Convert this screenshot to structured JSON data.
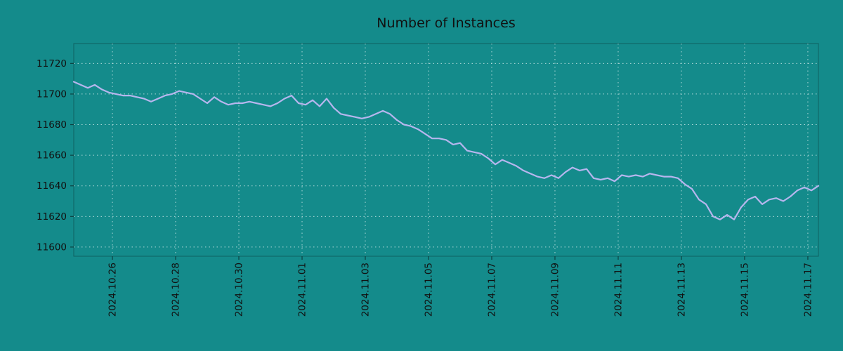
{
  "chart_data": {
    "type": "line",
    "title": "Number of Instances",
    "xlabel": "",
    "ylabel": "",
    "grid": true,
    "legend": "none",
    "ylim": [
      11594,
      11733
    ],
    "y_ticks": [
      11600,
      11620,
      11640,
      11660,
      11680,
      11700,
      11720
    ],
    "x_ticks": [
      {
        "label": "2024.10.26",
        "f": 0.0519
      },
      {
        "label": "2024.10.28",
        "f": 0.1368
      },
      {
        "label": "2024.10.30",
        "f": 0.2217
      },
      {
        "label": "2024.11.01",
        "f": 0.3066
      },
      {
        "label": "2024.11.03",
        "f": 0.3915
      },
      {
        "label": "2024.11.05",
        "f": 0.4764
      },
      {
        "label": "2024.11.07",
        "f": 0.5613
      },
      {
        "label": "2024.11.09",
        "f": 0.6462
      },
      {
        "label": "2024.11.11",
        "f": 0.7311
      },
      {
        "label": "2024.11.13",
        "f": 0.816
      },
      {
        "label": "2024.11.15",
        "f": 0.9009
      },
      {
        "label": "2024.11.17",
        "f": 0.9858
      }
    ],
    "series": [
      {
        "name": "instances",
        "values": [
          11708,
          11706,
          11704,
          11706,
          11703,
          11701,
          11700,
          11699,
          11699,
          11698,
          11697,
          11695,
          11697,
          11699,
          11700,
          11702,
          11701,
          11700,
          11697,
          11694,
          11698,
          11695,
          11693,
          11694,
          11694,
          11695,
          11694,
          11693,
          11692,
          11694,
          11697,
          11699,
          11694,
          11693,
          11696,
          11692,
          11697,
          11691,
          11687,
          11686,
          11685,
          11684,
          11685,
          11687,
          11689,
          11687,
          11683,
          11680,
          11679,
          11677,
          11674,
          11671,
          11671,
          11670,
          11667,
          11668,
          11663,
          11662,
          11661,
          11658,
          11654,
          11657,
          11655,
          11653,
          11650,
          11648,
          11646,
          11645,
          11647,
          11645,
          11649,
          11652,
          11650,
          11651,
          11645,
          11644,
          11645,
          11643,
          11647,
          11646,
          11647,
          11646,
          11648,
          11647,
          11646,
          11646,
          11645,
          11641,
          11638,
          11631,
          11628,
          11620,
          11618,
          11621,
          11618,
          11626,
          11631,
          11633,
          11628,
          11631,
          11632,
          11630,
          11633,
          11637,
          11639,
          11637,
          11640
        ]
      }
    ],
    "colors": {
      "background": "#148b8b",
      "line": "#b6b6ee",
      "grid": "#e2f2f2",
      "text": "#111111",
      "border": "#0a4040",
      "tick": "#0a4040"
    }
  }
}
